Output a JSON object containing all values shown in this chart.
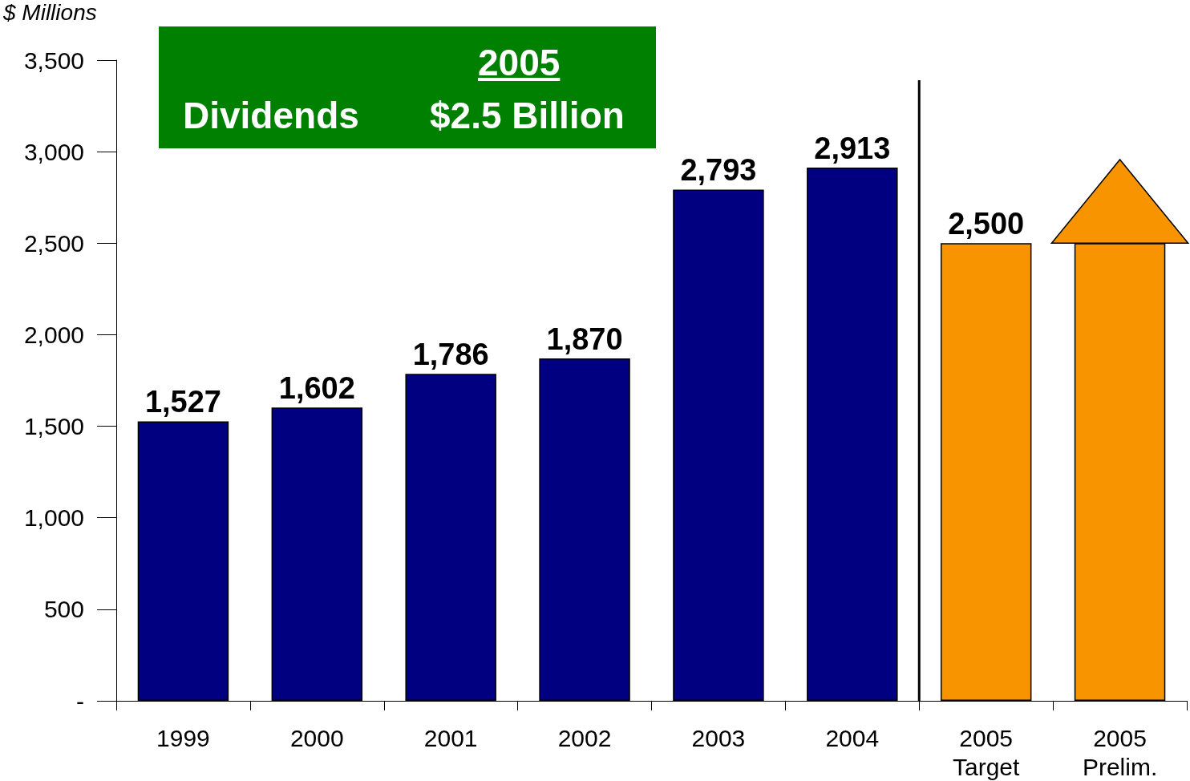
{
  "chart_data": {
    "type": "bar",
    "ylabel": "$ Millions",
    "categories": [
      "1999",
      "2000",
      "2001",
      "2002",
      "2003",
      "2004",
      "2005\nTarget",
      "2005\nPrelim."
    ],
    "values": [
      1527,
      1602,
      1786,
      1870,
      2793,
      2913,
      2500,
      2500
    ],
    "colors": [
      "#000080",
      "#000080",
      "#000080",
      "#000080",
      "#000080",
      "#000080",
      "#f79400",
      "#f79400"
    ],
    "value_labels": [
      "1,527",
      "1,602",
      "1,786",
      "1,870",
      "2,793",
      "2,913",
      "2,500",
      null
    ],
    "ylim": [
      0,
      3500
    ],
    "yticks": [
      {
        "value": 0,
        "label": "-"
      },
      {
        "value": 500,
        "label": "500"
      },
      {
        "value": 1000,
        "label": "1,000"
      },
      {
        "value": 1500,
        "label": "1,500"
      },
      {
        "value": 2000,
        "label": "2,000"
      },
      {
        "value": 2500,
        "label": "2,500"
      },
      {
        "value": 3000,
        "label": "3,000"
      },
      {
        "value": 3500,
        "label": "3,500"
      }
    ],
    "annotations": [
      "2005",
      "Dividends",
      "$2.5 Billion"
    ],
    "grid": false
  }
}
